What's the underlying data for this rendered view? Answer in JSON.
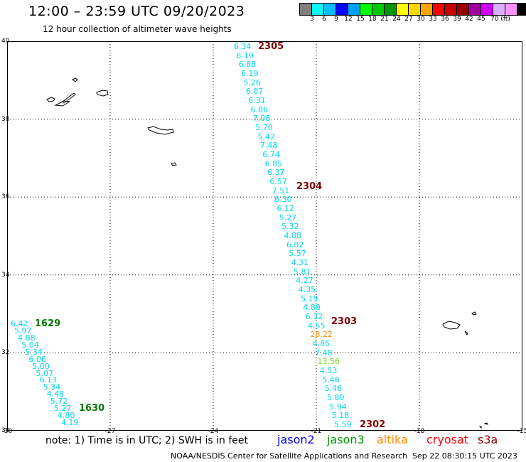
{
  "header": {
    "title": "12:00 – 23:59 UTC 09/20/2023",
    "subtitle": "12 hour collection of altimeter wave heights"
  },
  "colorbar": {
    "colors": [
      "#808080",
      "#00ffff",
      "#00bfff",
      "#0000ff",
      "#00a0ff",
      "#00ff00",
      "#00c800",
      "#009600",
      "#ffff00",
      "#ffd700",
      "#ffa500",
      "#ff0000",
      "#c80000",
      "#960000",
      "#a000a0",
      "#d000ff",
      "#d8b0ff",
      "#ff90ff",
      "#000000"
    ],
    "labels": [
      "3",
      "6",
      "9",
      "12",
      "15",
      "18",
      "21",
      "24",
      "27",
      "30",
      "33",
      "36",
      "39",
      "42",
      "45",
      "70 (ft)"
    ]
  },
  "map": {
    "lat_labels": [
      "40",
      "38",
      "36",
      "34",
      "32",
      "30"
    ],
    "lon_labels": [
      "-30",
      "-27",
      "-24",
      "-21",
      "-18",
      "-15"
    ],
    "colors": {
      "jason3": "#00d8e8",
      "warn": "#ff8c00",
      "green": "#7fd81e",
      "pass_red": "#800000",
      "pass_green": "#007700"
    }
  },
  "tracks": {
    "track_2305": [
      "6.34",
      "6.19",
      "6.88",
      "6.19",
      "5.26",
      "6.07",
      "6.31",
      "6.86",
      "7.08",
      "5.70",
      "5.42",
      "7.48",
      "6.74",
      "6.85",
      "6.37",
      "6.57",
      "7.51",
      "6.30",
      "6.12",
      "5.27",
      "5.32",
      "4.88",
      "6.02",
      "5.57",
      "4.31",
      "5.81",
      "4.27",
      "4.35",
      "5.19",
      "4.89",
      "6.32",
      "4.55",
      "28.22",
      "4.85",
      "7.48",
      "13.56",
      "4.53",
      "5.46",
      "5.46",
      "5.80",
      "5.94",
      "5.18",
      "5.59"
    ],
    "track_1629": [
      "6.42",
      "5.97",
      "4.88",
      "5.04",
      "5.34",
      "6.06",
      "5.00",
      "5.07",
      "6.13",
      "5.34",
      "4.48",
      "5.72",
      "5.27",
      "4.80",
      "4.19"
    ]
  },
  "pass_labels": [
    "2305",
    "2304",
    "2303",
    "2302",
    "1629",
    "1630"
  ],
  "footer": {
    "note": "note:  1) Time is in UTC;  2) SWH is in feet",
    "satellites": [
      {
        "name": "jason2",
        "color": "#0000ff"
      },
      {
        "name": "jason3",
        "color": "#009900"
      },
      {
        "name": "altika",
        "color": "#ff8c00"
      },
      {
        "name": "cryosat",
        "color": "#ff0000"
      },
      {
        "name": "s3a",
        "color": "#8b0000"
      }
    ],
    "credit": "NOAA/NESDIS Center for Satellite Applications and Research",
    "timestamp": "Sep 22 08:30:15 UTC 2023"
  }
}
